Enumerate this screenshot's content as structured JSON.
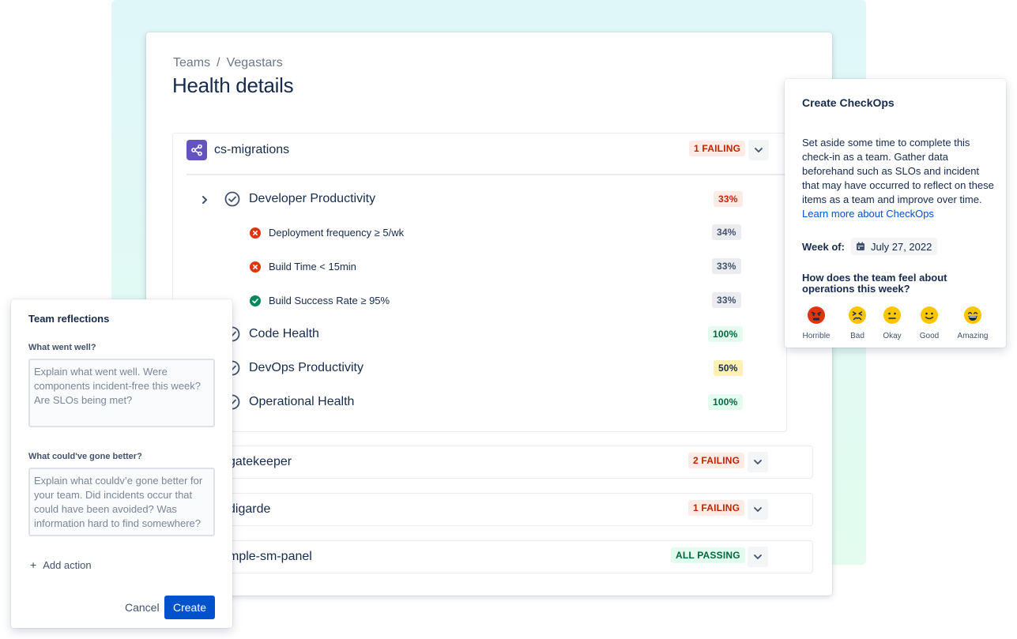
{
  "breadcrumb": {
    "items": [
      "Teams",
      "Vegastars"
    ],
    "separator": "/"
  },
  "page_title": "Health details",
  "services": [
    {
      "name": "cs-migrations",
      "status": "1 FAILING",
      "metrics": [
        {
          "label": "Developer Productivity",
          "score": "33%",
          "submetrics": [
            {
              "label": "Deployment frequency ≥ 5/wk",
              "score": "34%",
              "state": "fail"
            },
            {
              "label": "Build Time < 15min",
              "score": "33%",
              "state": "fail"
            },
            {
              "label": "Build Success Rate ≥ 95%",
              "score": "33%",
              "state": "pass"
            }
          ]
        },
        {
          "label": "Code Health",
          "score": "100%"
        },
        {
          "label": "DevOps Productivity",
          "score": "50%"
        },
        {
          "label": "Operational Health",
          "score": "100%"
        }
      ]
    },
    {
      "name": "gatekeeper",
      "status": "2 FAILING"
    },
    {
      "name": "digarde",
      "status": "1 FAILING"
    },
    {
      "name": "mple-sm-panel",
      "status": "ALL PASSING"
    }
  ],
  "checkops": {
    "title": "Create CheckOps",
    "description": "Set aside some time to complete this check-in as a team. Gather data beforehand such as SLOs and incident that may have occurred to reflect on these items as a team and improve over time.",
    "link": "Learn more about CheckOps",
    "week_label": "Week of:",
    "week_value": "July 27, 2022",
    "question": "How does the team feel about operations this week?",
    "moods": [
      "Horrible",
      "Bad",
      "Okay",
      "Good",
      "Amazing"
    ]
  },
  "reflections": {
    "title": "Team reflections",
    "q1_label": "What went well?",
    "q1_placeholder": "Explain what went well. Were components incident-free this week? Are SLOs being met?",
    "q2_label": "What could've gone better?",
    "q2_placeholder": "Explain what couldv’e gone better for your team. Did incidents occur that could have been avoided? Was information hard to find somewhere?",
    "add_action": "Add action",
    "cancel": "Cancel",
    "create": "Create"
  },
  "colors": {
    "primary": "#0052cc",
    "failing": "#de350b",
    "passing": "#00875a",
    "service_icon": "#6554c0"
  }
}
